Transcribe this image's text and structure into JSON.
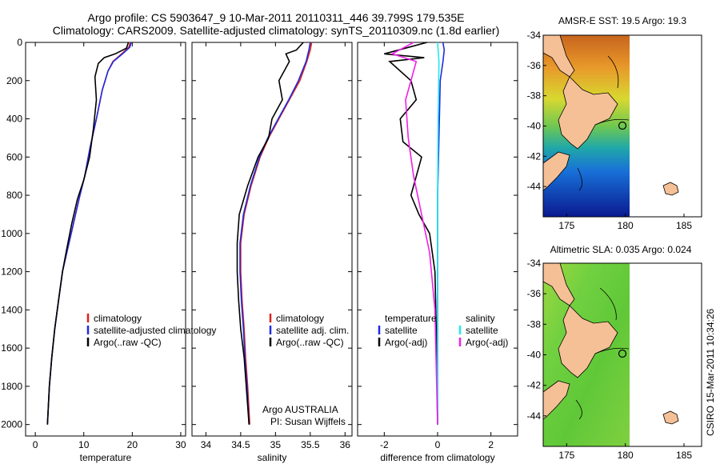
{
  "title_line1": "Argo profile: CS 5903647_9 10-Mar-2011 20110311_446 39.799S 179.535E",
  "title_line2": "Climatology: CARS2009. Satellite-adjusted climatology: synTS_20110309.nc (1.8d earlier)",
  "side_label": "CSIRO 15-Mar-2011 10:34:26",
  "credit_line1": "Argo AUSTRALIA",
  "credit_line2": "PI: Susan Wijffels",
  "colors": {
    "climatology": "#e0201b",
    "satellite": "#1f2be0",
    "argo": "#000000",
    "sat_salinity": "#20e8f0",
    "argo_salinity_diff": "#f020e8",
    "land": "#f5c096"
  },
  "chart_data": [
    {
      "type": "line",
      "name": "temperature-profile",
      "xlabel": "temperature",
      "ylabel": "",
      "xlim": [
        -2,
        31
      ],
      "ylim": [
        2060,
        0
      ],
      "xticks": [
        0,
        10,
        20,
        30
      ],
      "yticks": [
        0,
        200,
        400,
        600,
        800,
        1000,
        1200,
        1400,
        1600,
        1800,
        2000
      ],
      "legend": [
        "climatology",
        "satellite-adjusted climatology",
        "Argo(..raw -QC)"
      ],
      "legend_position": "lower-right",
      "series": [
        {
          "name": "climatology",
          "color": "#e0201b",
          "x": [
            19.6,
            19.3,
            17.8,
            16.0,
            15.0,
            13.8,
            12.6,
            11.3,
            10.2,
            9.2,
            8.3,
            7.4,
            6.5,
            5.6,
            4.8,
            4.0,
            3.4,
            2.9,
            2.5
          ],
          "y": [
            0,
            25,
            60,
            100,
            150,
            250,
            400,
            550,
            700,
            800,
            900,
            1000,
            1100,
            1200,
            1350,
            1500,
            1650,
            1800,
            2000
          ]
        },
        {
          "name": "satellite-adjusted climatology",
          "color": "#1f2be0",
          "x": [
            19.8,
            19.5,
            18.0,
            16.1,
            15.0,
            13.8,
            12.6,
            11.3,
            10.2,
            9.2,
            8.3,
            7.4,
            6.5,
            5.6,
            4.8,
            4.0,
            3.4,
            2.9,
            2.5
          ],
          "y": [
            0,
            25,
            60,
            100,
            150,
            250,
            400,
            550,
            700,
            800,
            900,
            1000,
            1100,
            1200,
            1350,
            1500,
            1650,
            1800,
            2000
          ]
        },
        {
          "name": "Argo(..raw -QC)",
          "color": "#000000",
          "x": [
            19.2,
            18.8,
            16.5,
            14.2,
            13.0,
            12.3,
            12.6,
            12.0,
            11.2,
            10.0,
            8.7,
            7.5,
            6.5,
            5.6,
            4.8,
            4.0,
            3.4,
            2.9,
            2.5
          ],
          "y": [
            0,
            30,
            60,
            80,
            110,
            180,
            300,
            450,
            600,
            720,
            820,
            950,
            1080,
            1200,
            1350,
            1500,
            1650,
            1800,
            2000
          ]
        }
      ]
    },
    {
      "type": "line",
      "name": "salinity-profile",
      "xlabel": "salinity",
      "ylabel": "",
      "xlim": [
        33.8,
        36.1
      ],
      "ylim": [
        2060,
        0
      ],
      "xticks": [
        34,
        34.5,
        35,
        35.5,
        36
      ],
      "xticklabels": [
        "34",
        "34.5",
        "35",
        "35.5",
        "36"
      ],
      "legend": [
        "climatology",
        "satellite adj. clim.",
        "Argo(..raw -QC)"
      ],
      "legend_position": "lower-right",
      "series": [
        {
          "name": "climatology",
          "color": "#e0201b",
          "x": [
            35.52,
            35.5,
            35.45,
            35.35,
            35.2,
            35.05,
            34.9,
            34.78,
            34.65,
            34.55,
            34.5,
            34.5,
            34.52,
            34.55,
            34.57,
            34.6,
            34.63
          ],
          "y": [
            0,
            40,
            100,
            200,
            300,
            400,
            500,
            600,
            750,
            900,
            1050,
            1200,
            1350,
            1500,
            1650,
            1800,
            2000
          ]
        },
        {
          "name": "satellite adj. clim.",
          "color": "#1f2be0",
          "x": [
            35.5,
            35.48,
            35.44,
            35.33,
            35.19,
            35.04,
            34.89,
            34.77,
            34.64,
            34.54,
            34.49,
            34.49,
            34.51,
            34.54,
            34.56,
            34.59,
            34.62
          ],
          "y": [
            0,
            40,
            100,
            200,
            300,
            400,
            500,
            600,
            750,
            900,
            1050,
            1200,
            1350,
            1500,
            1650,
            1800,
            2000
          ]
        },
        {
          "name": "Argo(..raw -QC)",
          "color": "#000000",
          "x": [
            35.4,
            35.3,
            35.15,
            35.2,
            35.05,
            35.1,
            34.95,
            34.9,
            34.75,
            34.6,
            34.48,
            34.45,
            34.45,
            34.47,
            34.5,
            34.55,
            34.58,
            34.62
          ],
          "y": [
            0,
            40,
            60,
            100,
            200,
            300,
            400,
            500,
            600,
            750,
            900,
            1050,
            1200,
            1350,
            1500,
            1650,
            1800,
            2000
          ]
        }
      ]
    },
    {
      "type": "line",
      "name": "difference-profile",
      "xlabel": "difference from climatology",
      "ylabel": "",
      "xlim": [
        -3,
        3
      ],
      "ylim": [
        2060,
        0
      ],
      "xticks": [
        -2,
        0,
        2
      ],
      "legend_groups": [
        {
          "heading": "temperature",
          "items": [
            "satellite",
            "Argo(-adj)"
          ]
        },
        {
          "heading": "salinity",
          "items": [
            "satellite",
            "Argo(-adj)"
          ]
        }
      ],
      "series": [
        {
          "name": "temperature satellite",
          "color": "#1f2be0",
          "x": [
            0.2,
            0.25,
            0.2,
            0.1,
            0.05,
            0.0,
            0.0,
            0.0,
            0.0
          ],
          "y": [
            0,
            40,
            100,
            200,
            500,
            800,
            1200,
            1600,
            2000
          ]
        },
        {
          "name": "temperature Argo(-adj)",
          "color": "#000000",
          "x": [
            -0.4,
            -2.0,
            -0.5,
            -1.8,
            -1.0,
            -0.8,
            -1.4,
            -1.3,
            -0.6,
            -1.0,
            -0.7,
            -0.3,
            -0.1,
            -0.05,
            -0.02,
            0.0
          ],
          "y": [
            0,
            60,
            80,
            100,
            200,
            300,
            400,
            520,
            600,
            800,
            900,
            1000,
            1200,
            1500,
            1800,
            2000
          ]
        },
        {
          "name": "salinity satellite",
          "color": "#20e8f0",
          "x": [
            0.0,
            0.05,
            0.02,
            0.0,
            0.0,
            0.0,
            0.0
          ],
          "y": [
            0,
            100,
            400,
            800,
            1200,
            1600,
            2000
          ]
        },
        {
          "name": "salinity Argo(-adj)",
          "color": "#f020e8",
          "x": [
            -0.9,
            -1.7,
            -0.8,
            -1.0,
            -1.2,
            -1.1,
            -0.9,
            -0.6,
            -0.3,
            -0.1,
            -0.05,
            0.0
          ],
          "y": [
            0,
            60,
            100,
            200,
            300,
            500,
            700,
            900,
            1100,
            1400,
            1700,
            2000
          ]
        }
      ]
    },
    {
      "type": "heatmap",
      "name": "sst-map",
      "title": "AMSR-E SST: 19.5 Argo: 19.3",
      "xlim": [
        173,
        186.5
      ],
      "ylim": [
        -46,
        -34
      ],
      "xticks": [
        175,
        180,
        185
      ],
      "yticks": [
        -34,
        -36,
        -38,
        -40,
        -42,
        -44
      ],
      "data_extent_lon": [
        173,
        180
      ],
      "argo_position": [
        179.535,
        -39.799
      ]
    },
    {
      "type": "heatmap",
      "name": "sla-map",
      "title": "Altimetric SLA: 0.035 Argo: 0.024",
      "xlim": [
        173,
        186.5
      ],
      "ylim": [
        -46,
        -34
      ],
      "xticks": [
        175,
        180,
        185
      ],
      "yticks": [
        -34,
        -36,
        -38,
        -40,
        -42,
        -44
      ],
      "data_extent_lon": [
        173,
        180
      ],
      "argo_position": [
        179.535,
        -39.799
      ]
    }
  ]
}
